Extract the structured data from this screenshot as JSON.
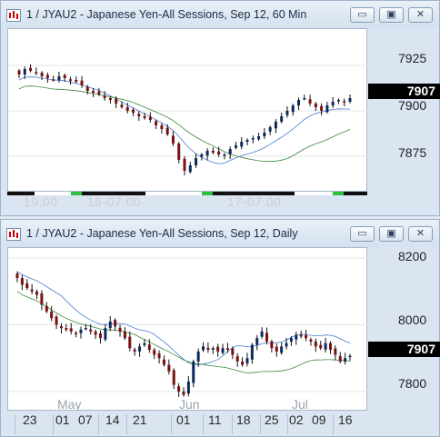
{
  "windows": [
    {
      "title": "1 / JYAU2 - Japanese Yen-All Sessions, Sep 12, 60 Min",
      "y_ticks": [
        "7925",
        "7900",
        "7875"
      ],
      "last_price": "7907",
      "time_labels": [
        "19:00",
        "16-07:00",
        "17-07:00"
      ],
      "buttons": {
        "minimize": "▭",
        "restore": "▣",
        "close": "✕"
      }
    },
    {
      "title": "1 / JYAU2 - Japanese Yen-All Sessions, Sep 12, Daily",
      "y_ticks": [
        "8200",
        "8000",
        "7800"
      ],
      "last_price": "7907",
      "month_labels": [
        "May",
        "Jun",
        "Jul"
      ],
      "day_labels": [
        "23",
        "01",
        "07",
        "14",
        "21",
        "01",
        "11",
        "18",
        "25",
        "02",
        "09",
        "16"
      ],
      "buttons": {
        "minimize": "▭",
        "restore": "▣",
        "close": "✕"
      }
    }
  ],
  "chart_data": [
    {
      "type": "candlestick",
      "title": "1 / JYAU2 - Japanese Yen-All Sessions, Sep 12, 60 Min",
      "ylim": [
        7855,
        7945
      ],
      "close": [
        7920,
        7923,
        7922,
        7921,
        7919,
        7918,
        7917,
        7919,
        7918,
        7917,
        7916,
        7914,
        7911,
        7910,
        7909,
        7907,
        7906,
        7904,
        7902,
        7900,
        7899,
        7897,
        7896,
        7895,
        7892,
        7890,
        7887,
        7882,
        7873,
        7867,
        7870,
        7874,
        7876,
        7878,
        7877,
        7876,
        7876,
        7879,
        7881,
        7883,
        7884,
        7885,
        7886,
        7888,
        7891,
        7894,
        7897,
        7900,
        7903,
        7906,
        7907,
        7904,
        7902,
        7900,
        7903,
        7905,
        7906,
        7905,
        7907
      ],
      "colors": {
        "up": "#0a2a5e",
        "down": "#7a1010",
        "ma_fast": "#4a7fd0",
        "ma_slow": "#3b8a3b"
      }
    },
    {
      "type": "candlestick",
      "title": "1 / JYAU2 - Japanese Yen-All Sessions, Sep 12, Daily",
      "ylim": [
        7740,
        8230
      ],
      "close": [
        8140,
        8120,
        8110,
        8100,
        8090,
        8060,
        8040,
        8020,
        8000,
        7990,
        7985,
        7980,
        7975,
        7985,
        7990,
        7980,
        7970,
        7960,
        7990,
        8010,
        7995,
        7980,
        7960,
        7930,
        7920,
        7935,
        7945,
        7925,
        7910,
        7900,
        7880,
        7860,
        7820,
        7800,
        7790,
        7830,
        7890,
        7920,
        7935,
        7925,
        7930,
        7920,
        7930,
        7925,
        7910,
        7890,
        7880,
        7900,
        7940,
        7960,
        7980,
        7950,
        7930,
        7920,
        7935,
        7945,
        7960,
        7970,
        7965,
        7960,
        7950,
        7935,
        7930,
        7945,
        7925,
        7910,
        7890,
        7900,
        7907
      ],
      "colors": {
        "up": "#0a2a5e",
        "down": "#7a1010",
        "ma_fast": "#4a7fd0",
        "ma_slow": "#3b8a3b"
      }
    }
  ]
}
